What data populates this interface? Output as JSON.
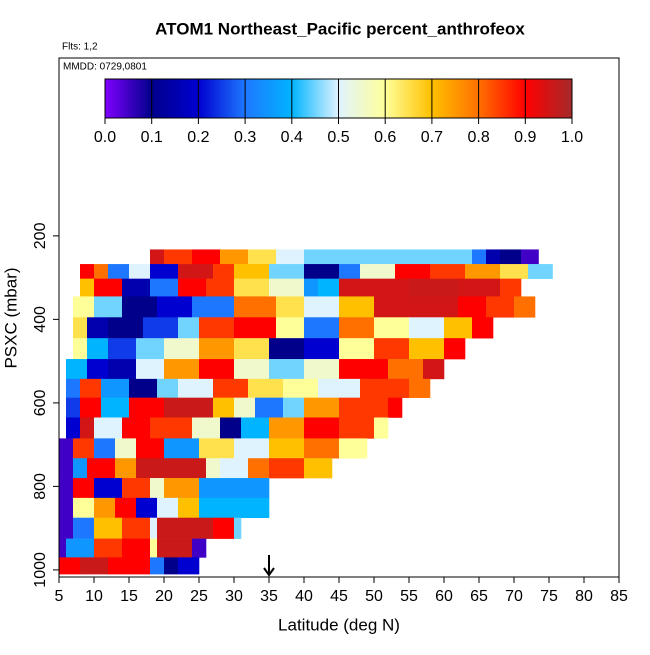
{
  "chart_data": {
    "type": "heatmap",
    "title": "ATOM1 Northeast_Pacific percent_anthrofeox",
    "subtitle": "Flts: 1,2",
    "annotation": "MMDD: 0729,0801",
    "x_label": "Latitude (deg N)",
    "y_label": "PSXC (mbar)",
    "xlim": [
      5,
      85
    ],
    "xticks": [
      5,
      10,
      15,
      20,
      25,
      30,
      35,
      40,
      45,
      50,
      55,
      60,
      65,
      70,
      75,
      80,
      85
    ],
    "ylim": [
      1017,
      -226
    ],
    "yticks": [
      200,
      400,
      600,
      800,
      1000
    ],
    "arrow_lat": 35,
    "clim": [
      0,
      1
    ],
    "cticks": [
      {
        "value": 0,
        "label": "0.0"
      },
      0.1,
      0.2,
      0.3,
      0.4,
      0.5,
      0.6,
      0.7,
      0.8,
      0.9,
      {
        "value": 1,
        "label": "1.0"
      }
    ],
    "colors": [
      "#8000ff",
      "#00008b",
      "#0000d0",
      "#1e78ff",
      "#00b4ff",
      "#dff3ff",
      "#ffff99",
      "#ffc000",
      "#ff7000",
      "#ff0000",
      "#a52a2a"
    ],
    "rows": [
      {
        "pressure": 250,
        "lat_edges": [
          18,
          20,
          24,
          28,
          32,
          36,
          40,
          64,
          66,
          68,
          71,
          73.5
        ],
        "values": [
          0.95,
          0.85,
          0.9,
          0.75,
          0.65,
          0.5,
          0.45,
          0.3,
          0.15,
          0.1,
          0.05
        ]
      },
      {
        "pressure": 285,
        "lat_edges": [
          8,
          10,
          12,
          15,
          18,
          22,
          27,
          30,
          35,
          40,
          45,
          48,
          53,
          58,
          63,
          68,
          72,
          75.5
        ],
        "values": [
          0.9,
          0.8,
          0.3,
          0.5,
          0.2,
          0.95,
          0.85,
          0.7,
          0.45,
          0.1,
          0.3,
          0.55,
          0.9,
          0.85,
          0.75,
          0.65,
          0.45
        ]
      },
      {
        "pressure": 320,
        "lat_edges": [
          8,
          10,
          14,
          18,
          22,
          26,
          30,
          35,
          40,
          42,
          45,
          55,
          62,
          68,
          71
        ],
        "values": [
          0.7,
          0.9,
          0.15,
          0.3,
          0.9,
          0.85,
          0.65,
          0.55,
          0.35,
          0.4,
          0.95,
          0.96,
          0.95,
          0.85
        ]
      },
      {
        "pressure": 370,
        "lat_edges": [
          7,
          10,
          14,
          19,
          24,
          30,
          36,
          40,
          45,
          50,
          58,
          62,
          66,
          70,
          73
        ],
        "values": [
          0.6,
          0.45,
          0.1,
          0.2,
          0.3,
          0.8,
          0.65,
          0.5,
          0.7,
          0.95,
          0.95,
          0.9,
          0.85,
          0.8
        ]
      },
      {
        "pressure": 420,
        "lat_edges": [
          7,
          9,
          12,
          17,
          22,
          25,
          30,
          36,
          40,
          45,
          50,
          55,
          60,
          64,
          67
        ],
        "values": [
          0.65,
          0.15,
          0.1,
          0.25,
          0.45,
          0.85,
          0.9,
          0.6,
          0.3,
          0.8,
          0.6,
          0.5,
          0.7,
          0.9
        ]
      },
      {
        "pressure": 470,
        "lat_edges": [
          7,
          9,
          12,
          16,
          20,
          25,
          30,
          35,
          40,
          45,
          50,
          55,
          60,
          63
        ],
        "values": [
          0.6,
          0.4,
          0.25,
          0.45,
          0.55,
          0.75,
          0.65,
          0.1,
          0.2,
          0.6,
          0.85,
          0.7,
          0.9
        ]
      },
      {
        "pressure": 520,
        "lat_edges": [
          6,
          9,
          12,
          16,
          20,
          25,
          30,
          35,
          40,
          45,
          52,
          57,
          60
        ],
        "values": [
          0.4,
          0.2,
          0.15,
          0.5,
          0.75,
          0.9,
          0.55,
          0.45,
          0.55,
          0.9,
          0.8,
          0.95
        ]
      },
      {
        "pressure": 565,
        "lat_edges": [
          6,
          8,
          11,
          15,
          19,
          22,
          27,
          32,
          37,
          42,
          48,
          55,
          58
        ],
        "values": [
          0.3,
          0.85,
          0.35,
          0.1,
          0.45,
          0.5,
          0.85,
          0.65,
          0.6,
          0.5,
          0.85,
          0.8
        ]
      },
      {
        "pressure": 610,
        "lat_edges": [
          6,
          8,
          11,
          15,
          20,
          27,
          30,
          33,
          37,
          40,
          45,
          52,
          54
        ],
        "values": [
          0.25,
          0.9,
          0.4,
          0.9,
          0.96,
          0.7,
          0.55,
          0.3,
          0.45,
          0.75,
          0.85,
          0.9
        ]
      },
      {
        "pressure": 660,
        "lat_edges": [
          6,
          8,
          10,
          14,
          18,
          24,
          28,
          31,
          35,
          40,
          45,
          50,
          52
        ],
        "values": [
          0.2,
          0.95,
          0.5,
          0.9,
          0.85,
          0.55,
          0.1,
          0.4,
          0.75,
          0.9,
          0.85,
          0.6
        ]
      },
      {
        "pressure": 710,
        "lat_edges": [
          5,
          7,
          10,
          13,
          16,
          20,
          25,
          30,
          35,
          40,
          45,
          49
        ],
        "values": [
          0.05,
          0.85,
          0.3,
          0.55,
          0.9,
          0.35,
          0.65,
          0.5,
          0.7,
          0.8,
          0.6
        ]
      },
      {
        "pressure": 755,
        "lat_edges": [
          5,
          7,
          9,
          13,
          16,
          26,
          28,
          32,
          35,
          40,
          44
        ],
        "values": [
          0.05,
          0.35,
          0.9,
          0.75,
          0.96,
          0.55,
          0.5,
          0.8,
          0.85,
          0.7
        ]
      },
      {
        "pressure": 805,
        "lat_edges": [
          5,
          7,
          10,
          14,
          18,
          20,
          25,
          35
        ],
        "values": [
          0.05,
          0.9,
          0.2,
          0.85,
          0.55,
          0.75,
          0.35
        ]
      },
      {
        "pressure": 850,
        "lat_edges": [
          5,
          7,
          10,
          13,
          16,
          19,
          22,
          25,
          35
        ],
        "values": [
          0.05,
          0.6,
          0.75,
          0.9,
          0.2,
          0.5,
          0.7,
          0.4
        ]
      },
      {
        "pressure": 900,
        "lat_edges": [
          5,
          7,
          10,
          14,
          18,
          19,
          27,
          30,
          31
        ],
        "values": [
          0.05,
          0.3,
          0.7,
          0.85,
          0.5,
          0.96,
          0.9,
          0.45
        ]
      },
      {
        "pressure": 950,
        "lat_edges": [
          5,
          6,
          10,
          14,
          18,
          19,
          24,
          26
        ],
        "values": [
          0.05,
          0.35,
          0.85,
          0.9,
          0.6,
          0.96,
          0.05
        ]
      },
      {
        "pressure": 990,
        "lat_edges": [
          5,
          8,
          12,
          18,
          20,
          22,
          25
        ],
        "values": [
          0.9,
          0.96,
          0.9,
          0.3,
          0.1,
          0.2
        ]
      }
    ]
  }
}
